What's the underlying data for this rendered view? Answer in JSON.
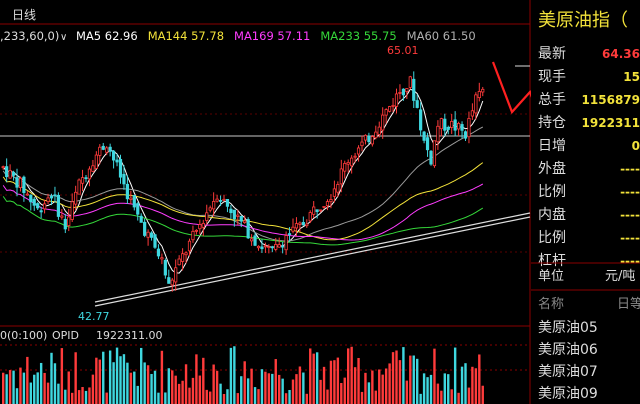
{
  "header": {
    "period_label": "日线",
    "params_label": ",233,60,0)",
    "ma": [
      {
        "label": "MA5",
        "value": "62.96",
        "color": "#ffffff"
      },
      {
        "label": "MA144",
        "value": "57.78",
        "color": "#f2e23a"
      },
      {
        "label": "MA169",
        "value": "57.11",
        "color": "#ff3dff"
      },
      {
        "label": "MA233",
        "value": "55.75",
        "color": "#35d83a"
      },
      {
        "label": "MA60",
        "value": "61.50",
        "color": "#b0b0b0"
      }
    ]
  },
  "chart_data": {
    "type": "candlestick",
    "high_label": "65.01",
    "low_label": "42.77",
    "price_range": [
      40,
      67
    ]
  },
  "volume_panel": {
    "params_label": "0(0:100)",
    "indicator": "OPID",
    "value": "1922311.00"
  },
  "quote_panel": {
    "title": "美原油指（",
    "rows": [
      {
        "label": "最新",
        "value": "64.36",
        "color": "#ff3b3b"
      },
      {
        "label": "现手",
        "value": "15",
        "color": "#f2e23a"
      },
      {
        "label": "总手",
        "value": "1156879",
        "color": "#f2e23a"
      },
      {
        "label": "持仓",
        "value": "1922311",
        "color": "#f2e23a"
      },
      {
        "label": "日增",
        "value": "0",
        "color": "#f2e23a"
      },
      {
        "label": "外盘",
        "value": "----",
        "color": "#f2e23a"
      },
      {
        "label": "比例",
        "value": "----",
        "color": "#f2e23a"
      },
      {
        "label": "内盘",
        "value": "----",
        "color": "#f2e23a"
      },
      {
        "label": "比例",
        "value": "----",
        "color": "#f2e23a"
      },
      {
        "label": "杠杆",
        "value": "----",
        "color": "#f2e23a"
      }
    ],
    "unit_label": "单位",
    "unit_value": "元/吨",
    "list_headers": {
      "name": "名称",
      "date": "日等"
    },
    "contracts": [
      "美原油05",
      "美原油06",
      "美原油07",
      "美原油09"
    ]
  },
  "colors": {
    "up": "#ff3b3b",
    "down": "#3fd7df",
    "accent_red": "#ff2020"
  }
}
